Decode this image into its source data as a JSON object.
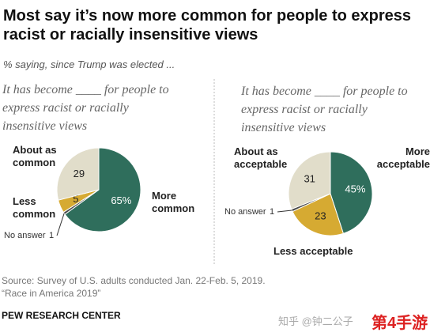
{
  "title": "Most say it’s now more common for people to express racist or racially insensitive views",
  "subtitle": "% saying, since Trump was elected ...",
  "chart_data": [
    {
      "type": "pie",
      "title": "It has become ____ for people to express racist or racially insensitive views",
      "categories": [
        "More common",
        "No answer",
        "Less common",
        "About as common"
      ],
      "values": [
        65,
        1,
        5,
        29
      ],
      "value_labels": [
        "65%",
        "1",
        "5",
        "29"
      ],
      "colors": [
        "#2f6e5c",
        "#4a4a4a",
        "#d6aa32",
        "#e1ddca"
      ]
    },
    {
      "type": "pie",
      "title": "It has become ____ for people to express racist or racially insensitive views",
      "categories": [
        "More acceptable",
        "Less acceptable",
        "No answer",
        "About as acceptable"
      ],
      "values": [
        45,
        23,
        1,
        31
      ],
      "value_labels": [
        "45%",
        "23",
        "1",
        "31"
      ],
      "colors": [
        "#2f6e5c",
        "#d6aa32",
        "#4a4a4a",
        "#e1ddca"
      ]
    }
  ],
  "source": [
    "Source: Survey of U.S. adults conducted Jan. 22-Feb. 5, 2019.",
    "“Race in America 2019”"
  ],
  "footer": "PEW RESEARCH CENTER",
  "watermark": [
    "知乎 @钟二公子",
    "第4手游"
  ]
}
